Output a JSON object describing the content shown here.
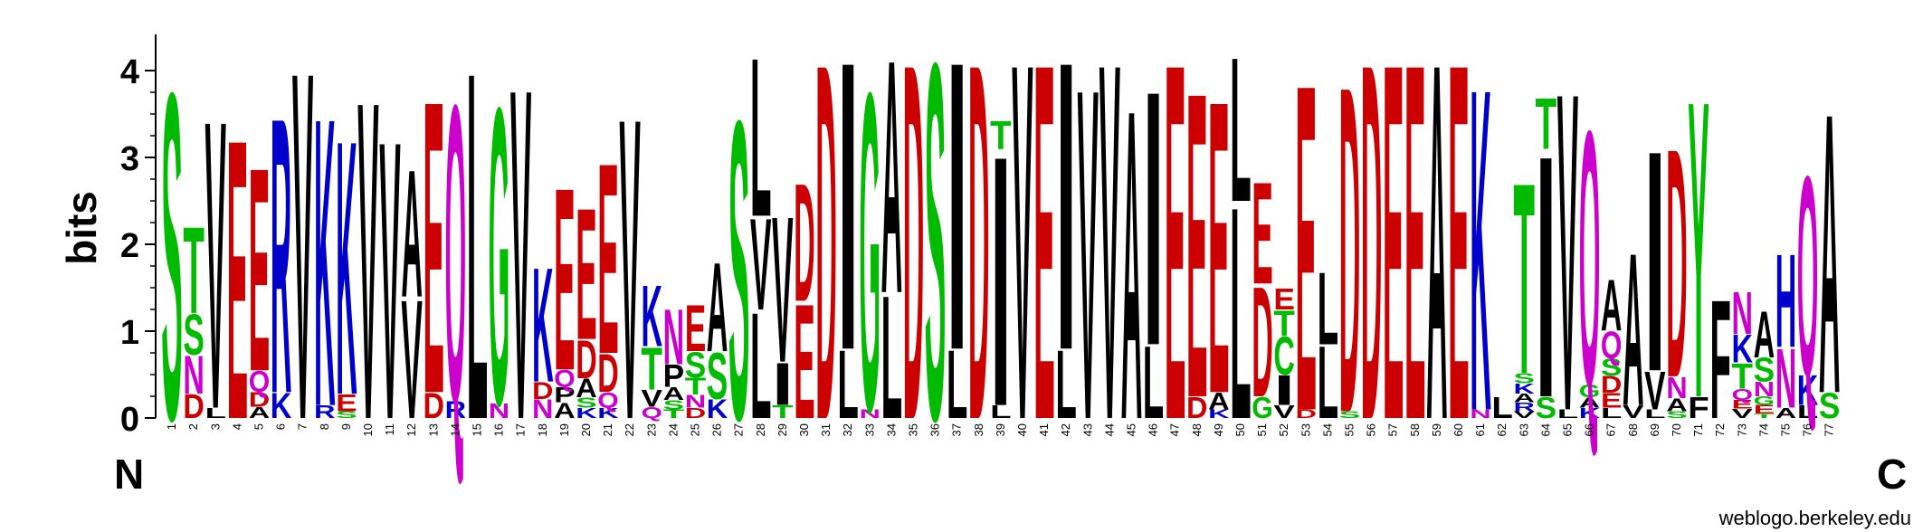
{
  "chart_data": {
    "type": "sequence-logo",
    "ylabel": "bits",
    "ylim": [
      0,
      4.3
    ],
    "yticks": [
      0,
      1,
      2,
      3,
      4
    ],
    "start_label": "N",
    "end_label": "C",
    "credit": "weblogo.berkeley.edu",
    "color_scheme": {
      "black": "#000000",
      "red": "#cc0000",
      "green": "#00bb00",
      "blue": "#0000cc",
      "magenta": "#cc00cc"
    },
    "positions": [
      {
        "pos": "1",
        "stack": [
          [
            "S",
            3.85
          ]
        ]
      },
      {
        "pos": "2",
        "stack": [
          [
            "D",
            0.28
          ],
          [
            "N",
            0.45
          ],
          [
            "S",
            0.48
          ],
          [
            "T",
            1.02
          ]
        ]
      },
      {
        "pos": "3",
        "stack": [
          [
            "L",
            0.12
          ],
          [
            "V",
            3.4
          ]
        ]
      },
      {
        "pos": "4",
        "stack": [
          [
            "E",
            3.3
          ]
        ]
      },
      {
        "pos": "5",
        "stack": [
          [
            "A",
            0.13
          ],
          [
            "D",
            0.17
          ],
          [
            "Q",
            0.25
          ],
          [
            "E",
            2.4
          ]
        ]
      },
      {
        "pos": "6",
        "stack": [
          [
            "K",
            0.3
          ],
          [
            "R",
            3.25
          ]
        ]
      },
      {
        "pos": "7",
        "stack": [
          [
            "V",
            4.1
          ]
        ]
      },
      {
        "pos": "8",
        "stack": [
          [
            "R",
            0.15
          ],
          [
            "K",
            3.4
          ]
        ]
      },
      {
        "pos": "9",
        "stack": [
          [
            "S",
            0.08
          ],
          [
            "E",
            0.2
          ],
          [
            "K",
            3.0
          ]
        ]
      },
      {
        "pos": "10",
        "stack": [
          [
            "V",
            3.75
          ]
        ]
      },
      {
        "pos": "11",
        "stack": [
          [
            "V",
            3.28
          ]
        ]
      },
      {
        "pos": "12",
        "stack": [
          [
            "V",
            1.4
          ],
          [
            "A",
            1.5
          ]
        ]
      },
      {
        "pos": "13",
        "stack": [
          [
            "D",
            0.3
          ],
          [
            "E",
            3.45
          ]
        ]
      },
      {
        "pos": "14",
        "stack": [
          [
            "R",
            0.2
          ],
          [
            "Q",
            3.5
          ]
        ]
      },
      {
        "pos": "15",
        "stack": [
          [
            "L",
            4.1
          ]
        ]
      },
      {
        "pos": "16",
        "stack": [
          [
            "N",
            0.17
          ],
          [
            "G",
            3.5
          ]
        ]
      },
      {
        "pos": "17",
        "stack": [
          [
            "V",
            3.9
          ]
        ]
      },
      {
        "pos": "18",
        "stack": [
          [
            "N",
            0.22
          ],
          [
            "D",
            0.2
          ],
          [
            "K",
            1.35
          ]
        ]
      },
      {
        "pos": "19",
        "stack": [
          [
            "A",
            0.18
          ],
          [
            "P",
            0.18
          ],
          [
            "Q",
            0.2
          ],
          [
            "E",
            2.15
          ]
        ]
      },
      {
        "pos": "20",
        "stack": [
          [
            "K",
            0.12
          ],
          [
            "S",
            0.12
          ],
          [
            "A",
            0.22
          ],
          [
            "D",
            0.45
          ],
          [
            "E",
            1.55
          ]
        ]
      },
      {
        "pos": "21",
        "stack": [
          [
            "K",
            0.12
          ],
          [
            "Q",
            0.18
          ],
          [
            "D",
            0.45
          ],
          [
            "E",
            2.25
          ]
        ]
      },
      {
        "pos": "22",
        "stack": [
          [
            "V",
            3.55
          ]
        ]
      },
      {
        "pos": "23",
        "stack": [
          [
            "Q",
            0.13
          ],
          [
            "V",
            0.2
          ],
          [
            "T",
            0.5
          ],
          [
            "K",
            0.72
          ]
        ]
      },
      {
        "pos": "24",
        "stack": [
          [
            "T",
            0.1
          ],
          [
            "S",
            0.11
          ],
          [
            "A",
            0.15
          ],
          [
            "P",
            0.26
          ],
          [
            "N",
            0.65
          ]
        ]
      },
      {
        "pos": "25",
        "stack": [
          [
            "D",
            0.12
          ],
          [
            "N",
            0.15
          ],
          [
            "T",
            0.2
          ],
          [
            "S",
            0.3
          ],
          [
            "E",
            0.55
          ]
        ]
      },
      {
        "pos": "26",
        "stack": [
          [
            "K",
            0.22
          ],
          [
            "S",
            0.55
          ],
          [
            "A",
            1.05
          ]
        ]
      },
      {
        "pos": "27",
        "stack": [
          [
            "S",
            3.52
          ]
        ]
      },
      {
        "pos": "28",
        "stack": [
          [
            "L",
            1.25
          ],
          [
            "V",
            1.08
          ],
          [
            "L",
            1.87
          ]
        ]
      },
      {
        "pos": "29",
        "stack": [
          [
            "T",
            0.15
          ],
          [
            "I",
            0.5
          ],
          [
            "V",
            1.72
          ]
        ]
      },
      {
        "pos": "30",
        "stack": [
          [
            "E",
            1.35
          ],
          [
            "D",
            1.39
          ]
        ]
      },
      {
        "pos": "31",
        "stack": [
          [
            "D",
            4.2
          ]
        ]
      },
      {
        "pos": "32",
        "stack": [
          [
            "L",
            0.8
          ],
          [
            "I",
            3.4
          ]
        ]
      },
      {
        "pos": "33",
        "stack": [
          [
            "N",
            0.1
          ],
          [
            "G",
            3.75
          ]
        ]
      },
      {
        "pos": "34",
        "stack": [
          [
            "L",
            1.45
          ],
          [
            "A",
            2.75
          ]
        ]
      },
      {
        "pos": "35",
        "stack": [
          [
            "D",
            4.2
          ]
        ]
      },
      {
        "pos": "36",
        "stack": [
          [
            "S",
            4.2
          ]
        ]
      },
      {
        "pos": "37",
        "stack": [
          [
            "L",
            0.8
          ],
          [
            "I",
            3.4
          ]
        ]
      },
      {
        "pos": "38",
        "stack": [
          [
            "D",
            4.2
          ]
        ]
      },
      {
        "pos": "39",
        "stack": [
          [
            "L",
            0.15
          ],
          [
            "I",
            2.95
          ],
          [
            "T",
            0.33
          ]
        ]
      },
      {
        "pos": "40",
        "stack": [
          [
            "V",
            4.2
          ]
        ]
      },
      {
        "pos": "41",
        "stack": [
          [
            "E",
            4.2
          ]
        ]
      },
      {
        "pos": "42",
        "stack": [
          [
            "L",
            0.8
          ],
          [
            "I",
            3.4
          ]
        ]
      },
      {
        "pos": "43",
        "stack": [
          [
            "V",
            3.9
          ]
        ]
      },
      {
        "pos": "44",
        "stack": [
          [
            "V",
            4.2
          ]
        ]
      },
      {
        "pos": "45",
        "stack": [
          [
            "A",
            3.65
          ]
        ]
      },
      {
        "pos": "46",
        "stack": [
          [
            "L",
            0.85
          ],
          [
            "I",
            3.0
          ]
        ]
      },
      {
        "pos": "47",
        "stack": [
          [
            "E",
            4.2
          ]
        ]
      },
      {
        "pos": "48",
        "stack": [
          [
            "D",
            0.25
          ],
          [
            "E",
            3.6
          ]
        ]
      },
      {
        "pos": "49",
        "stack": [
          [
            "K",
            0.1
          ],
          [
            "A",
            0.2
          ],
          [
            "E",
            3.45
          ]
        ]
      },
      {
        "pos": "50",
        "stack": [
          [
            "L",
            2.5
          ],
          [
            "L",
            1.7
          ]
        ]
      },
      {
        "pos": "51",
        "stack": [
          [
            "G",
            0.25
          ],
          [
            "D",
            1.3
          ],
          [
            "E",
            1.2
          ]
        ]
      },
      {
        "pos": "52",
        "stack": [
          [
            "V",
            0.15
          ],
          [
            "I",
            0.35
          ],
          [
            "C",
            0.45
          ],
          [
            "T",
            0.3
          ],
          [
            "E",
            0.25
          ]
        ]
      },
      {
        "pos": "53",
        "stack": [
          [
            "D",
            0.1
          ],
          [
            "E",
            3.85
          ]
        ]
      },
      {
        "pos": "54",
        "stack": [
          [
            "L",
            0.85
          ],
          [
            "L",
            0.85
          ]
        ]
      },
      {
        "pos": "55",
        "stack": [
          [
            "S",
            0.08
          ],
          [
            "D",
            3.85
          ]
        ]
      },
      {
        "pos": "56",
        "stack": [
          [
            "D",
            4.2
          ]
        ]
      },
      {
        "pos": "57",
        "stack": [
          [
            "E",
            4.2
          ]
        ]
      },
      {
        "pos": "58",
        "stack": [
          [
            "E",
            4.2
          ]
        ]
      },
      {
        "pos": "59",
        "stack": [
          [
            "A",
            4.2
          ]
        ]
      },
      {
        "pos": "60",
        "stack": [
          [
            "E",
            4.2
          ]
        ]
      },
      {
        "pos": "61",
        "stack": [
          [
            "N",
            0.1
          ],
          [
            "K",
            3.8
          ]
        ]
      },
      {
        "pos": "62",
        "stack": [
          [
            "L",
            0.25
          ]
        ]
      },
      {
        "pos": "63",
        "stack": [
          [
            "V",
            0.08
          ],
          [
            "R",
            0.1
          ],
          [
            "A",
            0.1
          ],
          [
            "K",
            0.12
          ],
          [
            "S",
            0.12
          ],
          [
            "T",
            2.25
          ]
        ]
      },
      {
        "pos": "64",
        "stack": [
          [
            "S",
            0.25
          ],
          [
            "I",
            2.85
          ],
          [
            "T",
            0.6
          ]
        ]
      },
      {
        "pos": "65",
        "stack": [
          [
            "L",
            0.1
          ],
          [
            "V",
            3.75
          ]
        ]
      },
      {
        "pos": "66",
        "stack": [
          [
            "K",
            0.12
          ],
          [
            "A",
            0.12
          ],
          [
            "G",
            0.15
          ],
          [
            "Q",
            3.0
          ]
        ]
      },
      {
        "pos": "67",
        "stack": [
          [
            "L",
            0.12
          ],
          [
            "E",
            0.17
          ],
          [
            "D",
            0.2
          ],
          [
            "S",
            0.2
          ],
          [
            "Q",
            0.32
          ],
          [
            "A",
            0.6
          ]
        ]
      },
      {
        "pos": "68",
        "stack": [
          [
            "V",
            0.15
          ],
          [
            "A",
            1.8
          ]
        ]
      },
      {
        "pos": "69",
        "stack": [
          [
            "L",
            0.1
          ],
          [
            "V",
            0.45
          ],
          [
            "I",
            2.6
          ]
        ]
      },
      {
        "pos": "70",
        "stack": [
          [
            "S",
            0.08
          ],
          [
            "A",
            0.15
          ],
          [
            "N",
            0.25
          ],
          [
            "D",
            2.7
          ]
        ]
      },
      {
        "pos": "71",
        "stack": [
          [
            "F",
            0.25
          ],
          [
            "Y",
            3.5
          ]
        ]
      },
      {
        "pos": "72",
        "stack": [
          [
            "F",
            1.4
          ]
        ]
      },
      {
        "pos": "73",
        "stack": [
          [
            "V",
            0.11
          ],
          [
            "E",
            0.1
          ],
          [
            "Q",
            0.13
          ],
          [
            "T",
            0.3
          ],
          [
            "K",
            0.33
          ],
          [
            "N",
            0.5
          ]
        ]
      },
      {
        "pos": "74",
        "stack": [
          [
            "T",
            0.05
          ],
          [
            "E",
            0.1
          ],
          [
            "G",
            0.1
          ],
          [
            "N",
            0.17
          ],
          [
            "S",
            0.28
          ],
          [
            "A",
            0.55
          ]
        ]
      },
      {
        "pos": "75",
        "stack": [
          [
            "A",
            0.12
          ],
          [
            "N",
            0.7
          ],
          [
            "H",
            1.1
          ]
        ]
      },
      {
        "pos": "76",
        "stack": [
          [
            "L",
            0.15
          ],
          [
            "K",
            0.35
          ],
          [
            "Q",
            2.35
          ]
        ]
      },
      {
        "pos": "77",
        "stack": [
          [
            "S",
            0.3
          ],
          [
            "A",
            3.3
          ]
        ]
      }
    ]
  }
}
